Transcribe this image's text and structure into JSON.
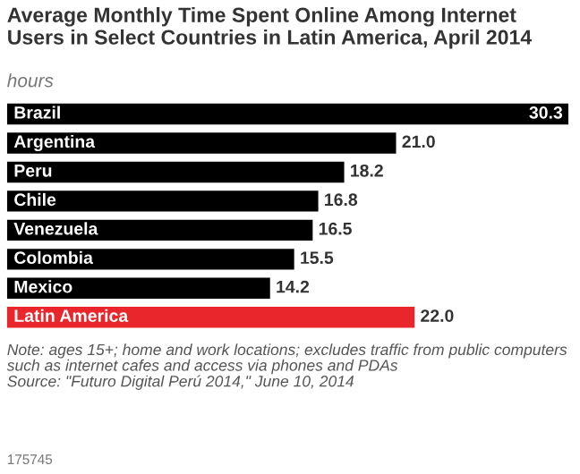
{
  "chart_data": {
    "type": "bar",
    "orientation": "horizontal",
    "title": "Average Monthly Time Spent Online Among Internet Users in Select Countries in Latin America, April 2014",
    "subtitle": "hours",
    "categories": [
      "Brazil",
      "Argentina",
      "Peru",
      "Chile",
      "Venezuela",
      "Colombia",
      "Mexico",
      "Latin America"
    ],
    "values": [
      30.3,
      21.0,
      18.2,
      16.8,
      16.5,
      15.5,
      14.2,
      22.0
    ],
    "value_labels": [
      "30.3",
      "21.0",
      "18.2",
      "16.8",
      "16.5",
      "15.5",
      "14.2",
      "22.0"
    ],
    "colors": [
      "#000000",
      "#000000",
      "#000000",
      "#000000",
      "#000000",
      "#000000",
      "#000000",
      "#e8262b"
    ],
    "annotations": [
      "Note: ages 15+; home and work locations; excludes traffic from public computers such as internet cafes and access via phones and PDAs",
      "Source: \"Futuro Digital Perú 2014,\" June 10, 2014",
      "175745"
    ],
    "legend": false
  }
}
